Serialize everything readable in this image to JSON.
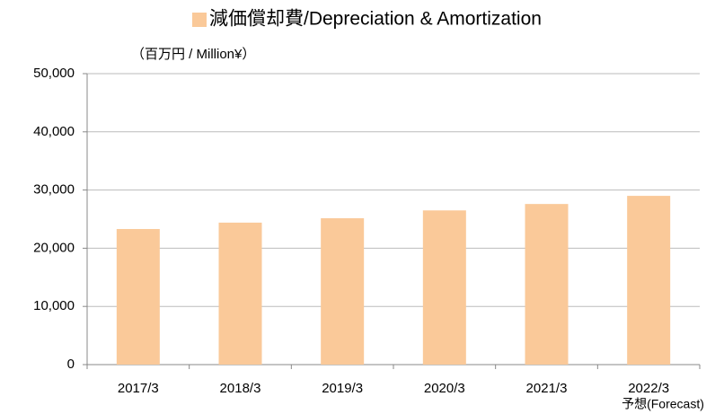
{
  "chart_data": {
    "type": "bar",
    "series": [
      {
        "name": "減価償却費/Depreciation & Amortization",
        "color": "#fac999",
        "values": [
          23300,
          24400,
          25150,
          26500,
          27600,
          29000
        ]
      }
    ],
    "unit_label": "（百万円 / Million¥）",
    "categories": [
      "2017/3",
      "2018/3",
      "2019/3",
      "2020/3",
      "2021/3",
      "2022/3"
    ],
    "annotations": [
      "予想(Forecast)"
    ],
    "ylim": [
      0,
      50000
    ],
    "yticks": [
      0,
      {
        "value": 10000,
        "label": "10,000"
      },
      {
        "value": 20000,
        "label": "20,000"
      },
      {
        "value": 30000,
        "label": "30,000"
      },
      {
        "value": 40000,
        "label": "40,000"
      },
      {
        "value": 50000,
        "label": "50,000"
      }
    ],
    "grid": true
  }
}
